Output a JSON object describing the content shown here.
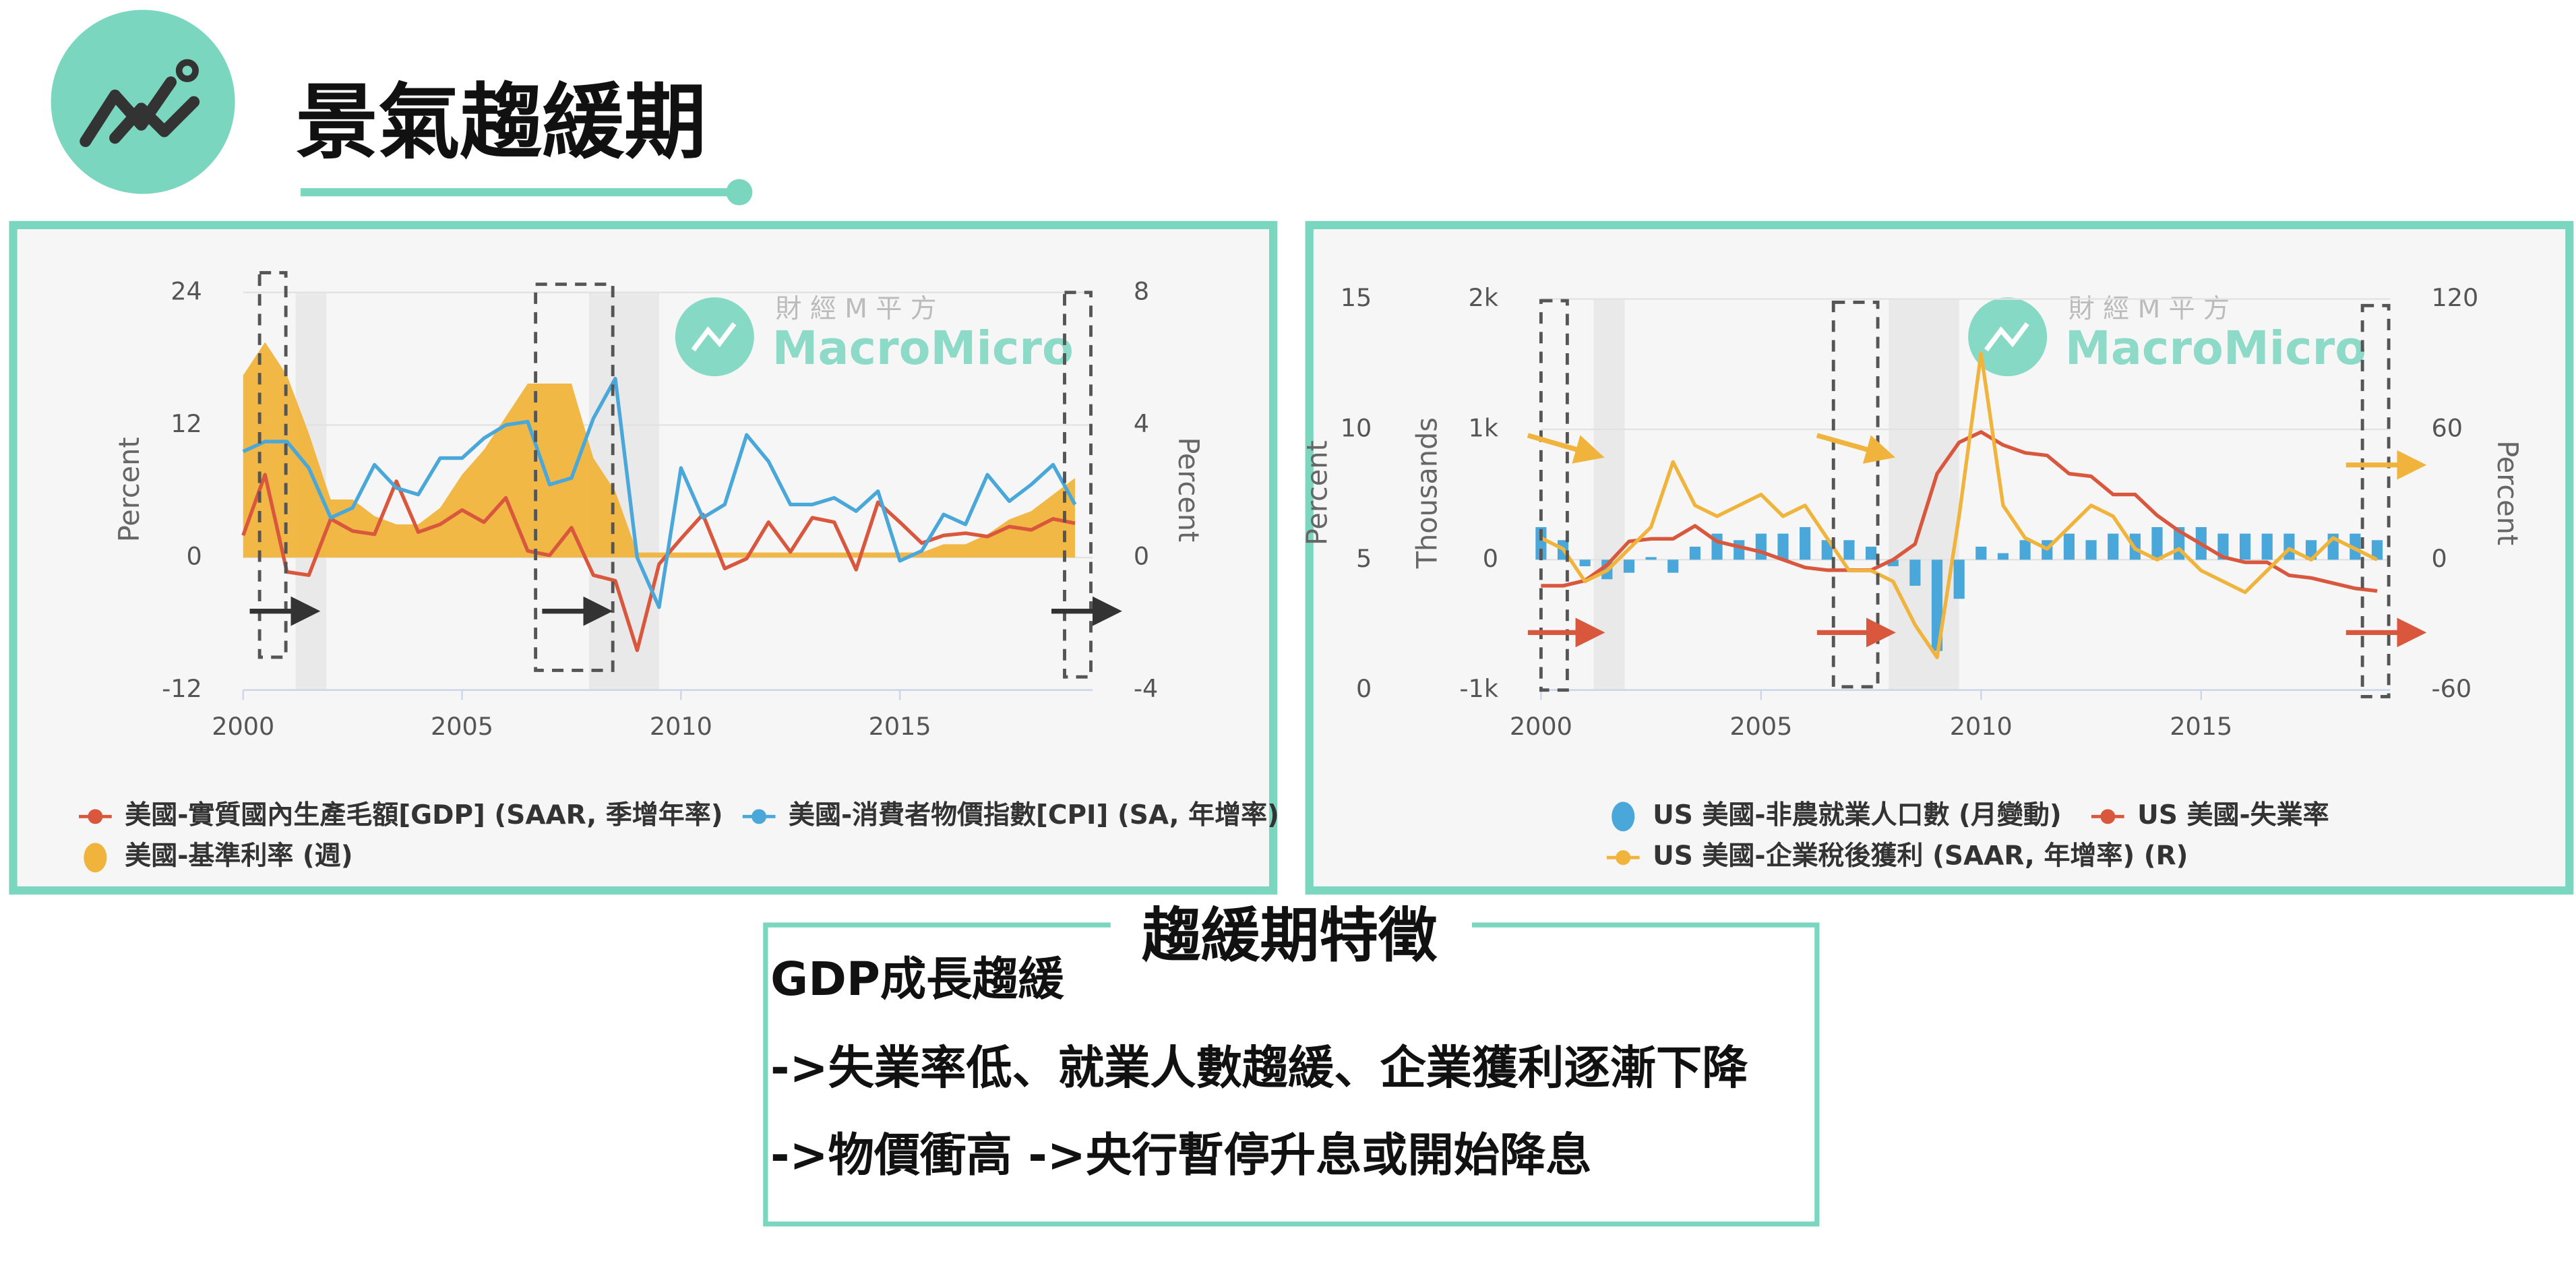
{
  "slide": {
    "title": "景氣趨緩期",
    "box_title": "趨緩期特徵",
    "box_lines": [
      "GDP成長趨緩",
      "->失業率低、就業人數趨緩、企業獲利逐漸下降",
      "->物價衝高 ->央行暫停升息或開始降息"
    ]
  },
  "chart_data": [
    {
      "type": "combo",
      "watermark": {
        "cn": "財 經 M 平 方",
        "en": "MacroMicro"
      },
      "ylabel": "Percent",
      "y2label": "Percent",
      "x": [
        2000,
        2000.5,
        2001,
        2001.5,
        2002,
        2002.5,
        2003,
        2003.5,
        2004,
        2004.5,
        2005,
        2005.5,
        2006,
        2006.5,
        2007,
        2007.5,
        2008,
        2008.5,
        2009,
        2009.5,
        2010,
        2010.5,
        2011,
        2011.5,
        2012,
        2012.5,
        2013,
        2013.5,
        2014,
        2014.5,
        2015,
        2015.5,
        2016,
        2016.5,
        2017,
        2017.5,
        2018,
        2018.5,
        2019
      ],
      "xlim": [
        2000,
        2019.4
      ],
      "xticks": [
        2000,
        2005,
        2010,
        2015
      ],
      "ylim": [
        -12,
        24
      ],
      "yticks": [
        -12,
        0,
        12,
        24
      ],
      "y2lim": [
        -4,
        8
      ],
      "y2ticks": [
        -4,
        0,
        4,
        8
      ],
      "grid": true,
      "recessions": [
        [
          2001.2,
          2001.9
        ],
        [
          2007.9,
          2009.5
        ]
      ],
      "series": [
        {
          "name": "美國-實質國內生產毛額[GDP] (SAAR, 季增年率)",
          "type": "line",
          "axis": "y",
          "color": "#d9573d",
          "values": [
            2.0,
            7.5,
            -1.3,
            -1.6,
            3.5,
            2.4,
            2.1,
            6.9,
            2.3,
            3.0,
            4.3,
            3.2,
            5.4,
            0.6,
            0.2,
            2.7,
            -1.6,
            -2.1,
            -8.4,
            -0.6,
            1.7,
            3.9,
            -1.0,
            -0.1,
            3.2,
            0.5,
            3.6,
            3.2,
            -1.1,
            5.0,
            3.2,
            1.3,
            2.0,
            2.2,
            1.9,
            2.8,
            2.5,
            3.5,
            3.1
          ]
        },
        {
          "name": "美國-消費者物價指數[CPI] (SA, 年增率)",
          "type": "line",
          "axis": "y2",
          "color": "#4aa7d9",
          "values": [
            3.2,
            3.5,
            3.5,
            2.7,
            1.2,
            1.5,
            2.8,
            2.1,
            1.9,
            3.0,
            3.0,
            3.6,
            4.0,
            4.1,
            2.2,
            2.4,
            4.2,
            5.4,
            0.0,
            -1.5,
            2.7,
            1.2,
            1.6,
            3.7,
            2.9,
            1.6,
            1.6,
            1.8,
            1.4,
            2.0,
            -0.1,
            0.2,
            1.3,
            1.0,
            2.5,
            1.7,
            2.2,
            2.8,
            1.6
          ]
        },
        {
          "name": "美國-基準利率 (週)",
          "type": "area",
          "axis": "y2",
          "color": "#f0b43c",
          "values": [
            5.5,
            6.5,
            5.5,
            3.75,
            1.75,
            1.75,
            1.25,
            1.0,
            1.0,
            1.5,
            2.5,
            3.25,
            4.25,
            5.25,
            5.25,
            5.25,
            3.0,
            2.0,
            0.15,
            0.15,
            0.15,
            0.15,
            0.15,
            0.15,
            0.15,
            0.15,
            0.15,
            0.15,
            0.15,
            0.15,
            0.15,
            0.15,
            0.4,
            0.4,
            0.7,
            1.15,
            1.4,
            1.9,
            2.4
          ]
        }
      ]
    },
    {
      "type": "combo",
      "watermark": {
        "cn": "財 經 M 平 方",
        "en": "MacroMicro"
      },
      "ylabel": "Percent",
      "y3label": "Thousands",
      "y2label": "Percent",
      "x": [
        2000,
        2000.5,
        2001,
        2001.5,
        2002,
        2002.5,
        2003,
        2003.5,
        2004,
        2004.5,
        2005,
        2005.5,
        2006,
        2006.5,
        2007,
        2007.5,
        2008,
        2008.5,
        2009,
        2009.5,
        2010,
        2010.5,
        2011,
        2011.5,
        2012,
        2012.5,
        2013,
        2013.5,
        2014,
        2014.5,
        2015,
        2015.5,
        2016,
        2016.5,
        2017,
        2017.5,
        2018,
        2018.5,
        2019
      ],
      "xlim": [
        2000,
        2019.3
      ],
      "xticks": [
        2000,
        2005,
        2010,
        2015
      ],
      "ylim": [
        0,
        15
      ],
      "yticks": [
        0,
        5,
        10,
        15
      ],
      "y3lim": [
        -1000,
        2000
      ],
      "y3ticks": [
        {
          "value": -1000,
          "label": "-1k"
        },
        0,
        {
          "value": 1000,
          "label": "1k"
        },
        {
          "value": 2000,
          "label": "2k"
        }
      ],
      "y2lim": [
        -60,
        120
      ],
      "y2ticks": [
        -60,
        0,
        60,
        120
      ],
      "grid": true,
      "recessions": [
        [
          2001.2,
          2001.9
        ],
        [
          2007.9,
          2009.5
        ]
      ],
      "series": [
        {
          "name": "US 美國-非農就業人口數 (月變動)",
          "type": "bar",
          "axis": "y3",
          "color": "#4aa7d9",
          "values": [
            250,
            150,
            -50,
            -150,
            -100,
            20,
            -100,
            100,
            200,
            150,
            200,
            200,
            250,
            150,
            150,
            100,
            -50,
            -200,
            -700,
            -300,
            100,
            50,
            150,
            150,
            200,
            150,
            200,
            200,
            250,
            250,
            250,
            200,
            200,
            200,
            200,
            150,
            200,
            200,
            150
          ]
        },
        {
          "name": "US 美國-失業率",
          "type": "line",
          "axis": "y",
          "color": "#d9573d",
          "values": [
            4.0,
            4.0,
            4.2,
            4.8,
            5.7,
            5.8,
            5.8,
            6.3,
            5.7,
            5.5,
            5.3,
            5.0,
            4.7,
            4.6,
            4.6,
            4.6,
            5.0,
            5.6,
            8.3,
            9.5,
            9.9,
            9.4,
            9.1,
            9.0,
            8.3,
            8.2,
            7.5,
            7.5,
            6.7,
            6.1,
            5.6,
            5.1,
            4.9,
            4.9,
            4.4,
            4.3,
            4.1,
            3.9,
            3.8
          ]
        },
        {
          "name": "US 美國-企業稅後獲利 (SAAR, 年增率) (R)",
          "type": "line",
          "axis": "y2",
          "color": "#f0b43c",
          "values": [
            10,
            5,
            -10,
            -5,
            5,
            15,
            45,
            25,
            20,
            25,
            30,
            20,
            25,
            10,
            -5,
            -5,
            -10,
            -30,
            -45,
            20,
            95,
            25,
            10,
            5,
            15,
            25,
            20,
            5,
            0,
            5,
            -5,
            -10,
            -15,
            -5,
            5,
            0,
            10,
            5,
            0
          ]
        }
      ]
    }
  ]
}
